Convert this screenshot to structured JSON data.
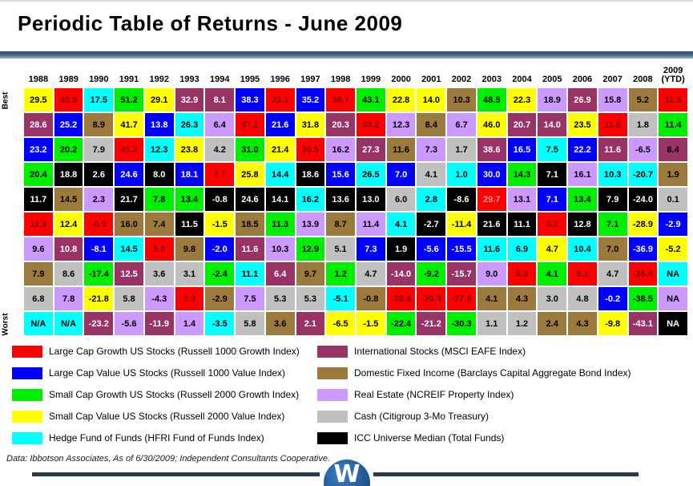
{
  "title": "Periodic Table of Returns - June 2009",
  "rank_axis": {
    "best": "Best",
    "worst": "Worst"
  },
  "colors": {
    "red": "#FF0000",
    "blue": "#0000FF",
    "green": "#00EE00",
    "yellow": "#FFFF00",
    "cyan": "#00FFFF",
    "maroon": "#993366",
    "brown": "#9C7A3E",
    "violet": "#CC99FF",
    "gray": "#C0C0C0",
    "black": "#000000"
  },
  "text_colors": {
    "red": "#7A0000",
    "blue": "#FFFFFF",
    "maroon": "#FFFFFF",
    "black": "#FFFFFF",
    "default": "#000000"
  },
  "chart_data": {
    "type": "table",
    "description": "Periodic table of annual asset-class returns ranked Best (top) to Worst (bottom); cell color = asset class, value = % return",
    "columns": [
      {
        "year": "1988",
        "cells": [
          [
            "29.5",
            "yellow"
          ],
          [
            "28.6",
            "maroon"
          ],
          [
            "23.2",
            "blue"
          ],
          [
            "20.4",
            "green"
          ],
          [
            "11.7",
            "black"
          ],
          [
            "11.3",
            "red"
          ],
          [
            "9.6",
            "violet"
          ],
          [
            "7.9",
            "brown"
          ],
          [
            "6.8",
            "gray"
          ],
          [
            "N/A",
            "cyan"
          ]
        ]
      },
      {
        "year": "1989",
        "cells": [
          [
            "35.9",
            "red"
          ],
          [
            "25.2",
            "blue"
          ],
          [
            "20.2",
            "green"
          ],
          [
            "18.8",
            "black"
          ],
          [
            "14.5",
            "brown"
          ],
          [
            "12.4",
            "yellow"
          ],
          [
            "10.8",
            "maroon"
          ],
          [
            "8.6",
            "gray"
          ],
          [
            "7.8",
            "violet"
          ],
          [
            "N/A",
            "cyan"
          ]
        ]
      },
      {
        "year": "1990",
        "cells": [
          [
            "17.5",
            "cyan"
          ],
          [
            "8.9",
            "brown"
          ],
          [
            "7.9",
            "gray"
          ],
          [
            "2.6",
            "black"
          ],
          [
            "2.3",
            "violet"
          ],
          [
            "-0.3",
            "red"
          ],
          [
            "-8.1",
            "blue"
          ],
          [
            "-17.4",
            "green"
          ],
          [
            "-21.8",
            "yellow"
          ],
          [
            "-23.2",
            "maroon"
          ]
        ]
      },
      {
        "year": "1991",
        "cells": [
          [
            "51.2",
            "green"
          ],
          [
            "41.7",
            "yellow"
          ],
          [
            "41.2",
            "red"
          ],
          [
            "24.6",
            "blue"
          ],
          [
            "21.7",
            "black"
          ],
          [
            "16.0",
            "brown"
          ],
          [
            "14.5",
            "cyan"
          ],
          [
            "12.5",
            "maroon"
          ],
          [
            "5.8",
            "gray"
          ],
          [
            "-5.6",
            "violet"
          ]
        ]
      },
      {
        "year": "1992",
        "cells": [
          [
            "29.1",
            "yellow"
          ],
          [
            "13.8",
            "blue"
          ],
          [
            "12.3",
            "cyan"
          ],
          [
            "8.0",
            "black"
          ],
          [
            "7.8",
            "green"
          ],
          [
            "7.4",
            "brown"
          ],
          [
            "5.0",
            "red"
          ],
          [
            "3.6",
            "gray"
          ],
          [
            "-4.3",
            "violet"
          ],
          [
            "-11.9",
            "maroon"
          ]
        ]
      },
      {
        "year": "1993",
        "cells": [
          [
            "32.9",
            "maroon"
          ],
          [
            "26.3",
            "cyan"
          ],
          [
            "23.8",
            "yellow"
          ],
          [
            "18.1",
            "blue"
          ],
          [
            "13.4",
            "green"
          ],
          [
            "11.5",
            "black"
          ],
          [
            "9.8",
            "brown"
          ],
          [
            "3.1",
            "gray"
          ],
          [
            "2.9",
            "red"
          ],
          [
            "1.4",
            "violet"
          ]
        ]
      },
      {
        "year": "1994",
        "cells": [
          [
            "8.1",
            "maroon"
          ],
          [
            "6.4",
            "violet"
          ],
          [
            "4.2",
            "gray"
          ],
          [
            "2.7",
            "red"
          ],
          [
            "-0.8",
            "black"
          ],
          [
            "-1.5",
            "yellow"
          ],
          [
            "-2.0",
            "blue"
          ],
          [
            "-2.4",
            "green"
          ],
          [
            "-2.9",
            "brown"
          ],
          [
            "-3.5",
            "cyan"
          ]
        ]
      },
      {
        "year": "1995",
        "cells": [
          [
            "38.3",
            "blue"
          ],
          [
            "37.2",
            "red"
          ],
          [
            "31.0",
            "green"
          ],
          [
            "25.8",
            "yellow"
          ],
          [
            "24.6",
            "black"
          ],
          [
            "18.5",
            "brown"
          ],
          [
            "11.6",
            "maroon"
          ],
          [
            "11.1",
            "cyan"
          ],
          [
            "7.5",
            "violet"
          ],
          [
            "5.8",
            "gray"
          ]
        ]
      },
      {
        "year": "1996",
        "cells": [
          [
            "23.1",
            "red"
          ],
          [
            "21.6",
            "blue"
          ],
          [
            "21.4",
            "yellow"
          ],
          [
            "14.4",
            "cyan"
          ],
          [
            "14.1",
            "black"
          ],
          [
            "11.3",
            "green"
          ],
          [
            "10.3",
            "violet"
          ],
          [
            "6.4",
            "maroon"
          ],
          [
            "5.3",
            "gray"
          ],
          [
            "3.6",
            "brown"
          ]
        ]
      },
      {
        "year": "1997",
        "cells": [
          [
            "35.2",
            "blue"
          ],
          [
            "31.8",
            "yellow"
          ],
          [
            "30.5",
            "red"
          ],
          [
            "18.6",
            "black"
          ],
          [
            "16.2",
            "cyan"
          ],
          [
            "13.9",
            "violet"
          ],
          [
            "12.9",
            "green"
          ],
          [
            "9.7",
            "brown"
          ],
          [
            "5.3",
            "gray"
          ],
          [
            "2.1",
            "maroon"
          ]
        ]
      },
      {
        "year": "1998",
        "cells": [
          [
            "38.7",
            "red"
          ],
          [
            "20.3",
            "maroon"
          ],
          [
            "16.2",
            "violet"
          ],
          [
            "15.6",
            "blue"
          ],
          [
            "13.6",
            "black"
          ],
          [
            "8.7",
            "brown"
          ],
          [
            "5.1",
            "gray"
          ],
          [
            "1.2",
            "green"
          ],
          [
            "-5.1",
            "cyan"
          ],
          [
            "-6.5",
            "yellow"
          ]
        ]
      },
      {
        "year": "1999",
        "cells": [
          [
            "43.1",
            "green"
          ],
          [
            "33.2",
            "red"
          ],
          [
            "27.3",
            "maroon"
          ],
          [
            "26.5",
            "cyan"
          ],
          [
            "13.0",
            "black"
          ],
          [
            "11.4",
            "violet"
          ],
          [
            "7.3",
            "blue"
          ],
          [
            "4.7",
            "gray"
          ],
          [
            "-0.8",
            "brown"
          ],
          [
            "-1.5",
            "yellow"
          ]
        ]
      },
      {
        "year": "2000",
        "cells": [
          [
            "22.8",
            "yellow"
          ],
          [
            "12.3",
            "violet"
          ],
          [
            "11.6",
            "brown"
          ],
          [
            "7.0",
            "blue"
          ],
          [
            "6.0",
            "gray"
          ],
          [
            "4.1",
            "cyan"
          ],
          [
            "1.9",
            "black"
          ],
          [
            "-14.0",
            "maroon"
          ],
          [
            "-22.4",
            "red"
          ],
          [
            "-22.4",
            "green"
          ]
        ]
      },
      {
        "year": "2001",
        "cells": [
          [
            "14.0",
            "yellow"
          ],
          [
            "8.4",
            "brown"
          ],
          [
            "7.3",
            "violet"
          ],
          [
            "4.1",
            "gray"
          ],
          [
            "2.8",
            "cyan"
          ],
          [
            "-2.7",
            "black"
          ],
          [
            "-5.6",
            "blue"
          ],
          [
            "-9.2",
            "green"
          ],
          [
            "-20.4",
            "red"
          ],
          [
            "-21.2",
            "maroon"
          ]
        ]
      },
      {
        "year": "2002",
        "cells": [
          [
            "10.3",
            "brown"
          ],
          [
            "6.7",
            "violet"
          ],
          [
            "1.7",
            "gray"
          ],
          [
            "1.0",
            "cyan"
          ],
          [
            "-8.6",
            "black"
          ],
          [
            "-11.4",
            "yellow"
          ],
          [
            "-15.5",
            "blue"
          ],
          [
            "-15.7",
            "maroon"
          ],
          [
            "-27.9",
            "red"
          ],
          [
            "-30.3",
            "green"
          ]
        ]
      },
      {
        "year": "2003",
        "cells": [
          [
            "48.5",
            "green"
          ],
          [
            "46.0",
            "yellow"
          ],
          [
            "38.6",
            "maroon"
          ],
          [
            "30.0",
            "blue"
          ],
          [
            "29.7",
            "red",
            "#FF9D9D"
          ],
          [
            "21.6",
            "black"
          ],
          [
            "11.6",
            "cyan"
          ],
          [
            "9.0",
            "violet"
          ],
          [
            "4.1",
            "brown"
          ],
          [
            "1.1",
            "gray"
          ]
        ]
      },
      {
        "year": "2004",
        "cells": [
          [
            "22.3",
            "yellow"
          ],
          [
            "20.7",
            "maroon"
          ],
          [
            "16.5",
            "blue"
          ],
          [
            "14.3",
            "green"
          ],
          [
            "13.1",
            "violet"
          ],
          [
            "11.1",
            "black"
          ],
          [
            "6.9",
            "cyan"
          ],
          [
            "6.3",
            "red"
          ],
          [
            "4.3",
            "brown"
          ],
          [
            "1.2",
            "gray"
          ]
        ]
      },
      {
        "year": "2005",
        "cells": [
          [
            "18.9",
            "violet"
          ],
          [
            "14.0",
            "maroon"
          ],
          [
            "7.5",
            "cyan"
          ],
          [
            "7.1",
            "black"
          ],
          [
            "7.1",
            "blue"
          ],
          [
            "5.3",
            "red"
          ],
          [
            "4.7",
            "yellow"
          ],
          [
            "4.1",
            "green"
          ],
          [
            "3.0",
            "gray"
          ],
          [
            "2.4",
            "brown"
          ]
        ]
      },
      {
        "year": "2006",
        "cells": [
          [
            "26.9",
            "maroon"
          ],
          [
            "23.5",
            "yellow"
          ],
          [
            "22.2",
            "blue"
          ],
          [
            "16.1",
            "violet"
          ],
          [
            "13.4",
            "green"
          ],
          [
            "12.8",
            "black"
          ],
          [
            "10.4",
            "cyan"
          ],
          [
            "9.1",
            "red"
          ],
          [
            "4.8",
            "gray"
          ],
          [
            "4.3",
            "brown"
          ]
        ]
      },
      {
        "year": "2007",
        "cells": [
          [
            "15.8",
            "violet"
          ],
          [
            "11.8",
            "red"
          ],
          [
            "11.6",
            "maroon"
          ],
          [
            "10.3",
            "cyan"
          ],
          [
            "7.9",
            "black"
          ],
          [
            "7.1",
            "green"
          ],
          [
            "7.0",
            "brown"
          ],
          [
            "4.7",
            "gray"
          ],
          [
            "-0.2",
            "blue"
          ],
          [
            "-9.8",
            "yellow"
          ]
        ]
      },
      {
        "year": "2008",
        "cells": [
          [
            "5.2",
            "brown"
          ],
          [
            "1.8",
            "gray"
          ],
          [
            "-6.5",
            "violet"
          ],
          [
            "-20.7",
            "cyan"
          ],
          [
            "-24.0",
            "black"
          ],
          [
            "-28.9",
            "yellow"
          ],
          [
            "-36.9",
            "blue"
          ],
          [
            "-38.4",
            "red"
          ],
          [
            "-38.5",
            "green"
          ],
          [
            "-43.1",
            "maroon"
          ]
        ]
      },
      {
        "year": "2009",
        "sub": "(YTD)",
        "cells": [
          [
            "11.5",
            "red"
          ],
          [
            "11.4",
            "green"
          ],
          [
            "8.4",
            "maroon",
            "#000000"
          ],
          [
            "1.9",
            "brown"
          ],
          [
            "0.1",
            "gray"
          ],
          [
            "-2.9",
            "blue"
          ],
          [
            "-5.2",
            "yellow"
          ],
          [
            "NA",
            "cyan"
          ],
          [
            "NA",
            "violet"
          ],
          [
            "NA",
            "black",
            "#FFFFFF"
          ]
        ]
      }
    ]
  },
  "legend": {
    "left": [
      {
        "key": "red",
        "label": "Large Cap Growth US Stocks (Russell 1000 Growth Index)"
      },
      {
        "key": "blue",
        "label": "Large Cap Value US Stocks (Russell 1000 Value Index)"
      },
      {
        "key": "green",
        "label": "Small Cap Growth US Stocks (Russell 2000 Growth Index)"
      },
      {
        "key": "yellow",
        "label": "Small Cap Value US Stocks (Russell 2000 Value Index)"
      },
      {
        "key": "cyan",
        "label": "Hedge Fund of Funds (HFRI Fund of Funds Index)"
      }
    ],
    "right": [
      {
        "key": "maroon",
        "label": "International Stocks (MSCI EAFE Index)"
      },
      {
        "key": "brown",
        "label": "Domestic Fixed Income (Barclays Capital Aggregate Bond Index)"
      },
      {
        "key": "violet",
        "label": "Real Estate (NCREIF Property Index)"
      },
      {
        "key": "gray",
        "label": "Cash (Citigroup 3-Mo Treasury)"
      },
      {
        "key": "black",
        "label": "ICC Universe Median (Total Funds)"
      }
    ]
  },
  "footer": {
    "source": "Data: Ibbotson Associates, As of 6/30/2009; Independent Consultants Cooperative."
  },
  "logo": {
    "letter": "W"
  }
}
